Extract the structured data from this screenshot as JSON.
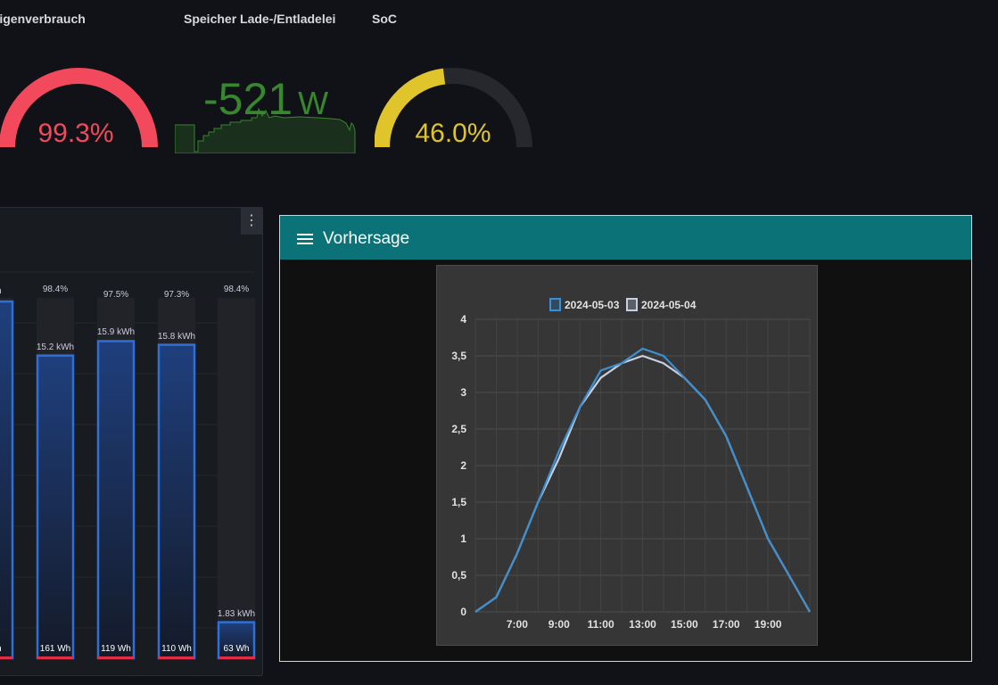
{
  "gauges": {
    "eigen": {
      "title": "Eigenverbrauch",
      "value": "99.3%",
      "fraction": 0.993,
      "color": "#f2495c"
    },
    "speicher": {
      "title": "Speicher Lade-/Entladeleistung",
      "value": "-521",
      "unit": "W",
      "color": "#37872d"
    },
    "soc": {
      "title": "SoC",
      "value": "46.0%",
      "fraction": 0.46,
      "color": "#e0b400"
    }
  },
  "bar_panel": {
    "menu_icon": "vertical-dots-icon",
    "bars": [
      {
        "pct": "%",
        "top_value": "Wh",
        "bottom_value": "Wh",
        "fill": 0.99
      },
      {
        "pct": "98.4%",
        "top_value": "15.2 kWh",
        "bottom_value": "161 Wh",
        "fill": 0.84
      },
      {
        "pct": "97.5%",
        "top_value": "15.9 kWh",
        "bottom_value": "119 Wh",
        "fill": 0.88
      },
      {
        "pct": "97.3%",
        "top_value": "15.8 kWh",
        "bottom_value": "110 Wh",
        "fill": 0.87
      },
      {
        "pct": "98.4%",
        "top_value": "1.83 kWh",
        "bottom_value": "63 Wh",
        "fill": 0.1
      }
    ]
  },
  "vorhersage": {
    "title": "Vorhersage",
    "menu_icon": "hamburger-menu-icon"
  },
  "chart_data": {
    "type": "line",
    "title": "",
    "xlabel": "",
    "ylabel": "",
    "x": [
      5,
      6,
      7,
      8,
      9,
      10,
      11,
      12,
      13,
      14,
      15,
      16,
      17,
      18,
      19,
      20,
      21
    ],
    "x_tick_labels": [
      "7:00",
      "9:00",
      "11:00",
      "13:00",
      "15:00",
      "17:00",
      "19:00"
    ],
    "x_ticks": [
      7,
      9,
      11,
      13,
      15,
      17,
      19
    ],
    "y_ticks": [
      0,
      0.5,
      1,
      1.5,
      2,
      2.5,
      3,
      3.5,
      4
    ],
    "y_tick_labels": [
      "0",
      "0,5",
      "1",
      "1,5",
      "2",
      "2,5",
      "3",
      "3,5",
      "4"
    ],
    "xlim": [
      5,
      21
    ],
    "ylim": [
      0,
      4
    ],
    "grid": true,
    "legend_position": "top-center",
    "series": [
      {
        "name": "2024-05-03",
        "color": "#3e8ed0",
        "values": [
          0,
          0.2,
          0.8,
          1.5,
          2.2,
          2.8,
          3.3,
          3.4,
          3.6,
          3.5,
          3.2,
          2.9,
          2.4,
          1.7,
          1.0,
          0.5,
          0
        ]
      },
      {
        "name": "2024-05-04",
        "color": "#c8d0e0",
        "values": [
          0,
          0.2,
          0.8,
          1.5,
          2.1,
          2.8,
          3.2,
          3.4,
          3.5,
          3.4,
          3.2,
          2.9,
          2.4,
          1.7,
          1.0,
          0.5,
          0
        ]
      }
    ]
  }
}
